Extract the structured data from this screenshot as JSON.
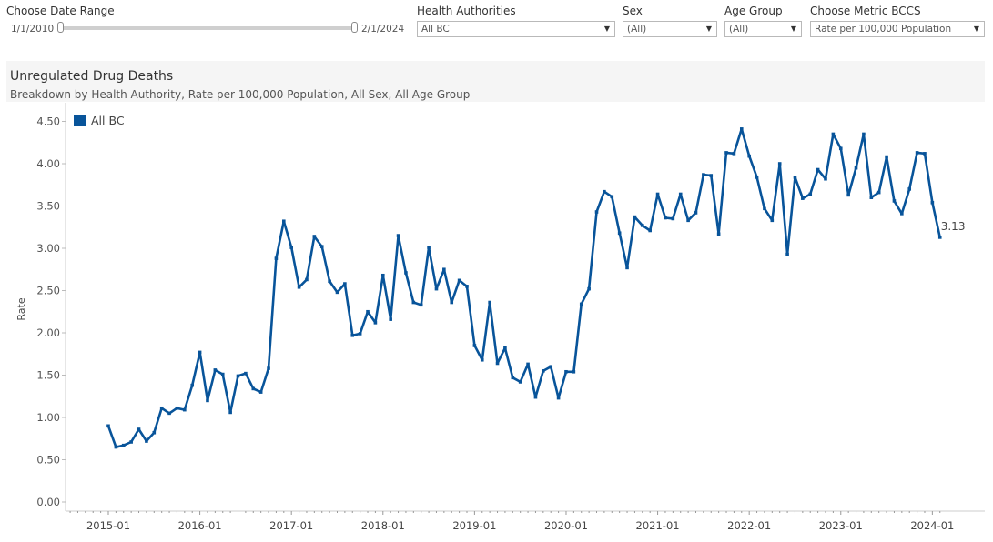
{
  "filters": {
    "date_range": {
      "label": "Choose Date Range",
      "start": "1/1/2010",
      "end": "2/1/2024"
    },
    "health_authorities": {
      "label": "Health Authorities",
      "value": "All BC"
    },
    "sex": {
      "label": "Sex",
      "value": "(All)"
    },
    "age_group": {
      "label": "Age Group",
      "value": "(All)"
    },
    "metric": {
      "label": "Choose Metric BCCS",
      "value": "Rate per 100,000 Population"
    }
  },
  "header": {
    "title": "Unregulated Drug Deaths",
    "subtitle": "Breakdown by Health Authority, Rate per 100,000 Population,  All Sex,  All Age Group"
  },
  "chart_data": {
    "type": "line",
    "title": "Unregulated Drug Deaths",
    "subtitle": "Breakdown by Health Authority, Rate per 100,000 Population,  All Sex,  All Age Group",
    "xlabel": "",
    "ylabel": "Rate",
    "ylim": [
      0,
      4.7
    ],
    "yticks": [
      0,
      0.5,
      1.0,
      1.5,
      2.0,
      2.5,
      3.0,
      3.5,
      4.0,
      4.5
    ],
    "ytick_labels": [
      "0.00",
      "0.50",
      "1.00",
      "1.50",
      "2.00",
      "2.50",
      "3.00",
      "3.50",
      "4.00",
      "4.50"
    ],
    "xtick_labels": [
      "2015-01",
      "2016-01",
      "2017-01",
      "2018-01",
      "2019-01",
      "2020-01",
      "2021-01",
      "2022-01",
      "2023-01",
      "2024-01"
    ],
    "grid": false,
    "legend": {
      "position": "top-left",
      "entries": [
        "All BC"
      ]
    },
    "series_color": "#08549a",
    "end_label": "3.13",
    "series": [
      {
        "name": "All BC",
        "x": [
          "2015-01",
          "2015-02",
          "2015-03",
          "2015-04",
          "2015-05",
          "2015-06",
          "2015-07",
          "2015-08",
          "2015-09",
          "2015-10",
          "2015-11",
          "2015-12",
          "2016-01",
          "2016-02",
          "2016-03",
          "2016-04",
          "2016-05",
          "2016-06",
          "2016-07",
          "2016-08",
          "2016-09",
          "2016-10",
          "2016-11",
          "2016-12",
          "2017-01",
          "2017-02",
          "2017-03",
          "2017-04",
          "2017-05",
          "2017-06",
          "2017-07",
          "2017-08",
          "2017-09",
          "2017-10",
          "2017-11",
          "2017-12",
          "2018-01",
          "2018-02",
          "2018-03",
          "2018-04",
          "2018-05",
          "2018-06",
          "2018-07",
          "2018-08",
          "2018-09",
          "2018-10",
          "2018-11",
          "2018-12",
          "2019-01",
          "2019-02",
          "2019-03",
          "2019-04",
          "2019-05",
          "2019-06",
          "2019-07",
          "2019-08",
          "2019-09",
          "2019-10",
          "2019-11",
          "2019-12",
          "2020-01",
          "2020-02",
          "2020-03",
          "2020-04",
          "2020-05",
          "2020-06",
          "2020-07",
          "2020-08",
          "2020-09",
          "2020-10",
          "2020-11",
          "2020-12",
          "2021-01",
          "2021-02",
          "2021-03",
          "2021-04",
          "2021-05",
          "2021-06",
          "2021-07",
          "2021-08",
          "2021-09",
          "2021-10",
          "2021-11",
          "2021-12",
          "2022-01",
          "2022-02",
          "2022-03",
          "2022-04",
          "2022-05",
          "2022-06",
          "2022-07",
          "2022-08",
          "2022-09",
          "2022-10",
          "2022-11",
          "2022-12",
          "2023-01",
          "2023-02",
          "2023-03",
          "2023-04",
          "2023-05",
          "2023-06",
          "2023-07",
          "2023-08",
          "2023-09",
          "2023-10",
          "2023-11",
          "2023-12",
          "2024-01",
          "2024-02"
        ],
        "values": [
          0.9,
          0.65,
          0.67,
          0.71,
          0.86,
          0.72,
          0.82,
          1.11,
          1.05,
          1.11,
          1.09,
          1.38,
          1.77,
          1.2,
          1.56,
          1.51,
          1.06,
          1.49,
          1.52,
          1.34,
          1.3,
          1.58,
          2.88,
          3.32,
          3.01,
          2.54,
          2.63,
          3.14,
          3.02,
          2.61,
          2.48,
          2.58,
          1.97,
          1.99,
          2.25,
          2.12,
          2.68,
          2.16,
          3.15,
          2.71,
          2.36,
          2.33,
          3.01,
          2.52,
          2.75,
          2.36,
          2.62,
          2.55,
          1.85,
          1.68,
          2.36,
          1.64,
          1.82,
          1.47,
          1.42,
          1.63,
          1.24,
          1.55,
          1.6,
          1.23,
          1.54,
          1.54,
          2.34,
          2.52,
          3.43,
          3.67,
          3.61,
          3.18,
          2.77,
          3.37,
          3.27,
          3.21,
          3.64,
          3.36,
          3.35,
          3.64,
          3.33,
          3.42,
          3.87,
          3.86,
          3.17,
          4.13,
          4.12,
          4.41,
          4.09,
          3.84,
          3.47,
          3.33,
          4.0,
          2.93,
          3.84,
          3.59,
          3.64,
          3.93,
          3.82,
          4.35,
          4.18,
          3.63,
          3.95,
          4.35,
          3.6,
          3.66,
          4.08,
          3.56,
          3.41,
          3.7,
          4.13,
          4.12,
          3.54,
          3.13
        ]
      }
    ]
  }
}
